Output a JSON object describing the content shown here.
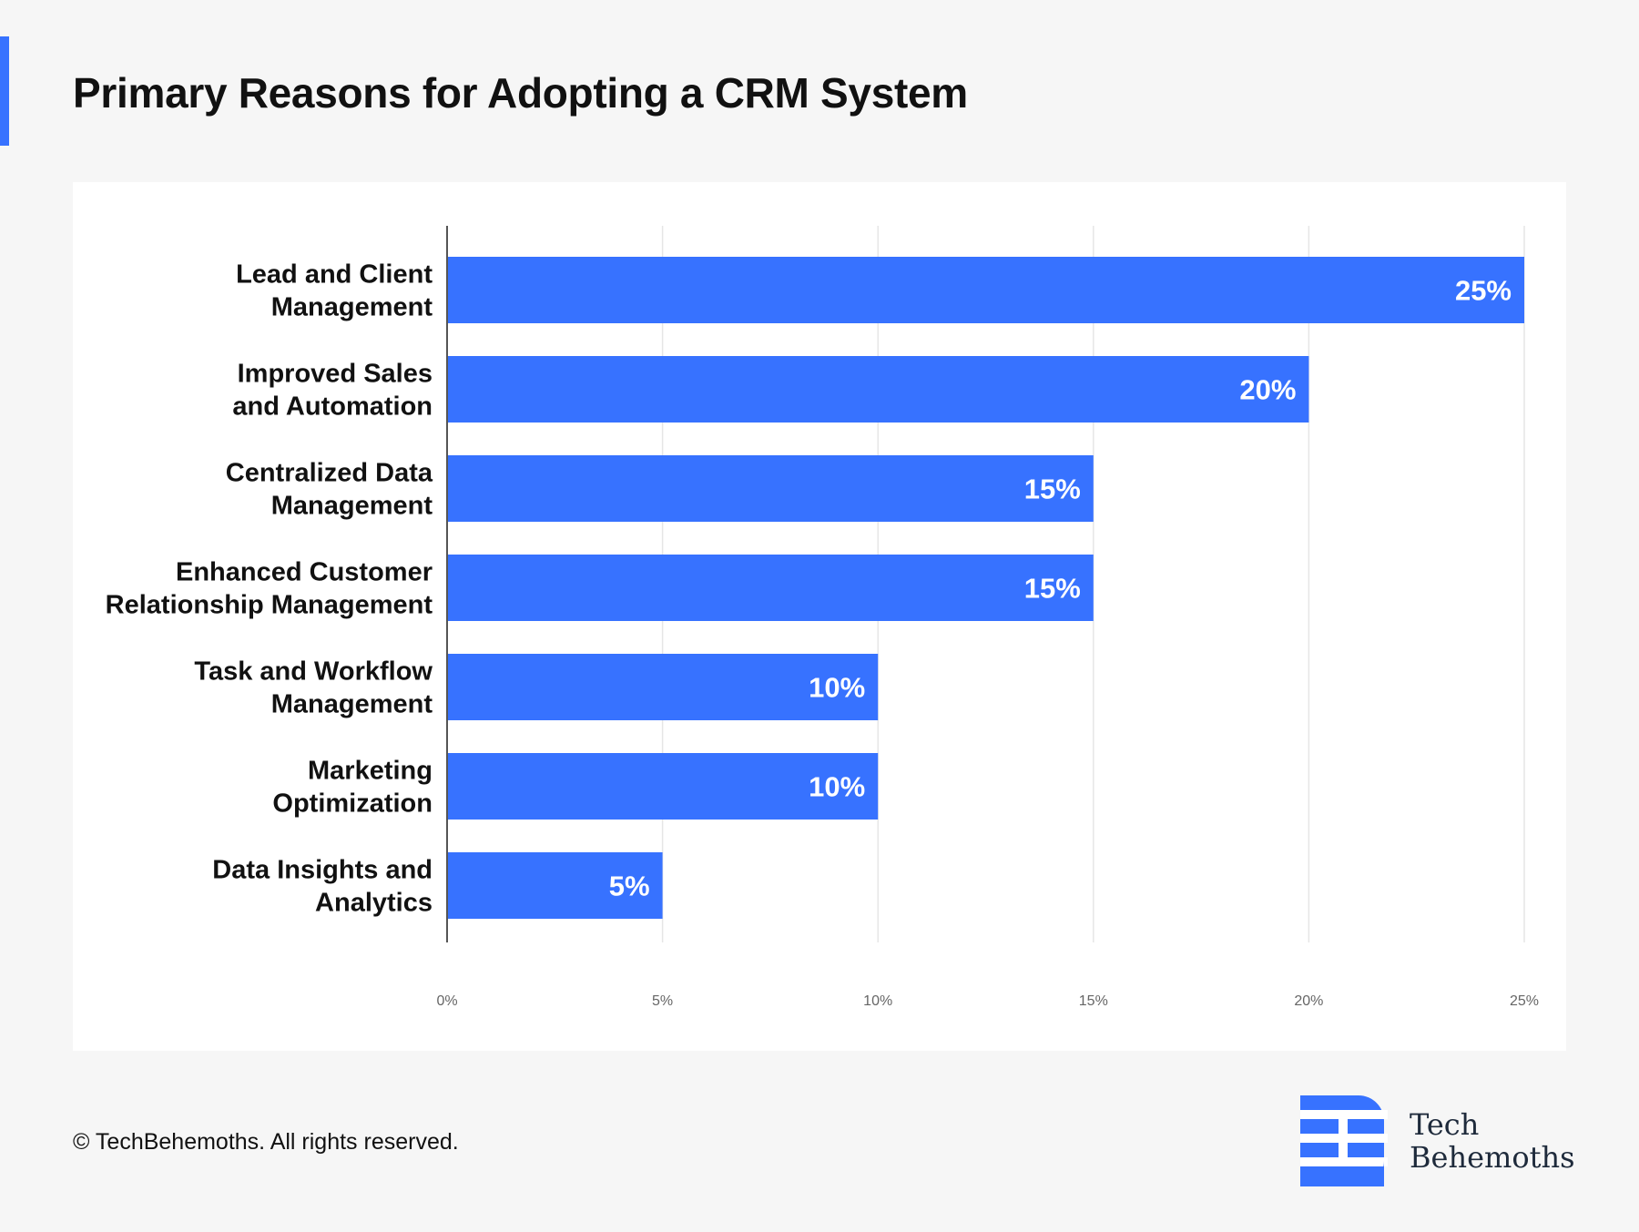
{
  "header": {
    "title": "Primary Reasons for Adopting a CRM System",
    "accent_color": "#3772ff"
  },
  "chart_data": {
    "type": "bar",
    "orientation": "horizontal",
    "categories": [
      [
        "Lead and Client",
        "Management"
      ],
      [
        "Improved Sales",
        "and Automation"
      ],
      [
        "Centralized Data",
        "Management"
      ],
      [
        "Enhanced Customer",
        "Relationship Management"
      ],
      [
        "Task and Workflow",
        "Management"
      ],
      [
        "Marketing",
        "Optimization"
      ],
      [
        "Data Insights and",
        "Analytics"
      ]
    ],
    "values": [
      25,
      20,
      15,
      15,
      10,
      10,
      5
    ],
    "value_labels": [
      "25%",
      "20%",
      "15%",
      "15%",
      "10%",
      "10%",
      "5%"
    ],
    "xlim": [
      0,
      25
    ],
    "x_ticks": [
      0,
      5,
      10,
      15,
      20,
      25
    ],
    "x_tick_labels": [
      "0%",
      "5%",
      "10%",
      "15%",
      "20%",
      "25%"
    ],
    "bar_color": "#3772ff",
    "grid": true
  },
  "footer": {
    "copyright": "© TechBehemoths. All rights reserved.",
    "brand_line1": "Tech",
    "brand_line2": "Behemoths"
  }
}
